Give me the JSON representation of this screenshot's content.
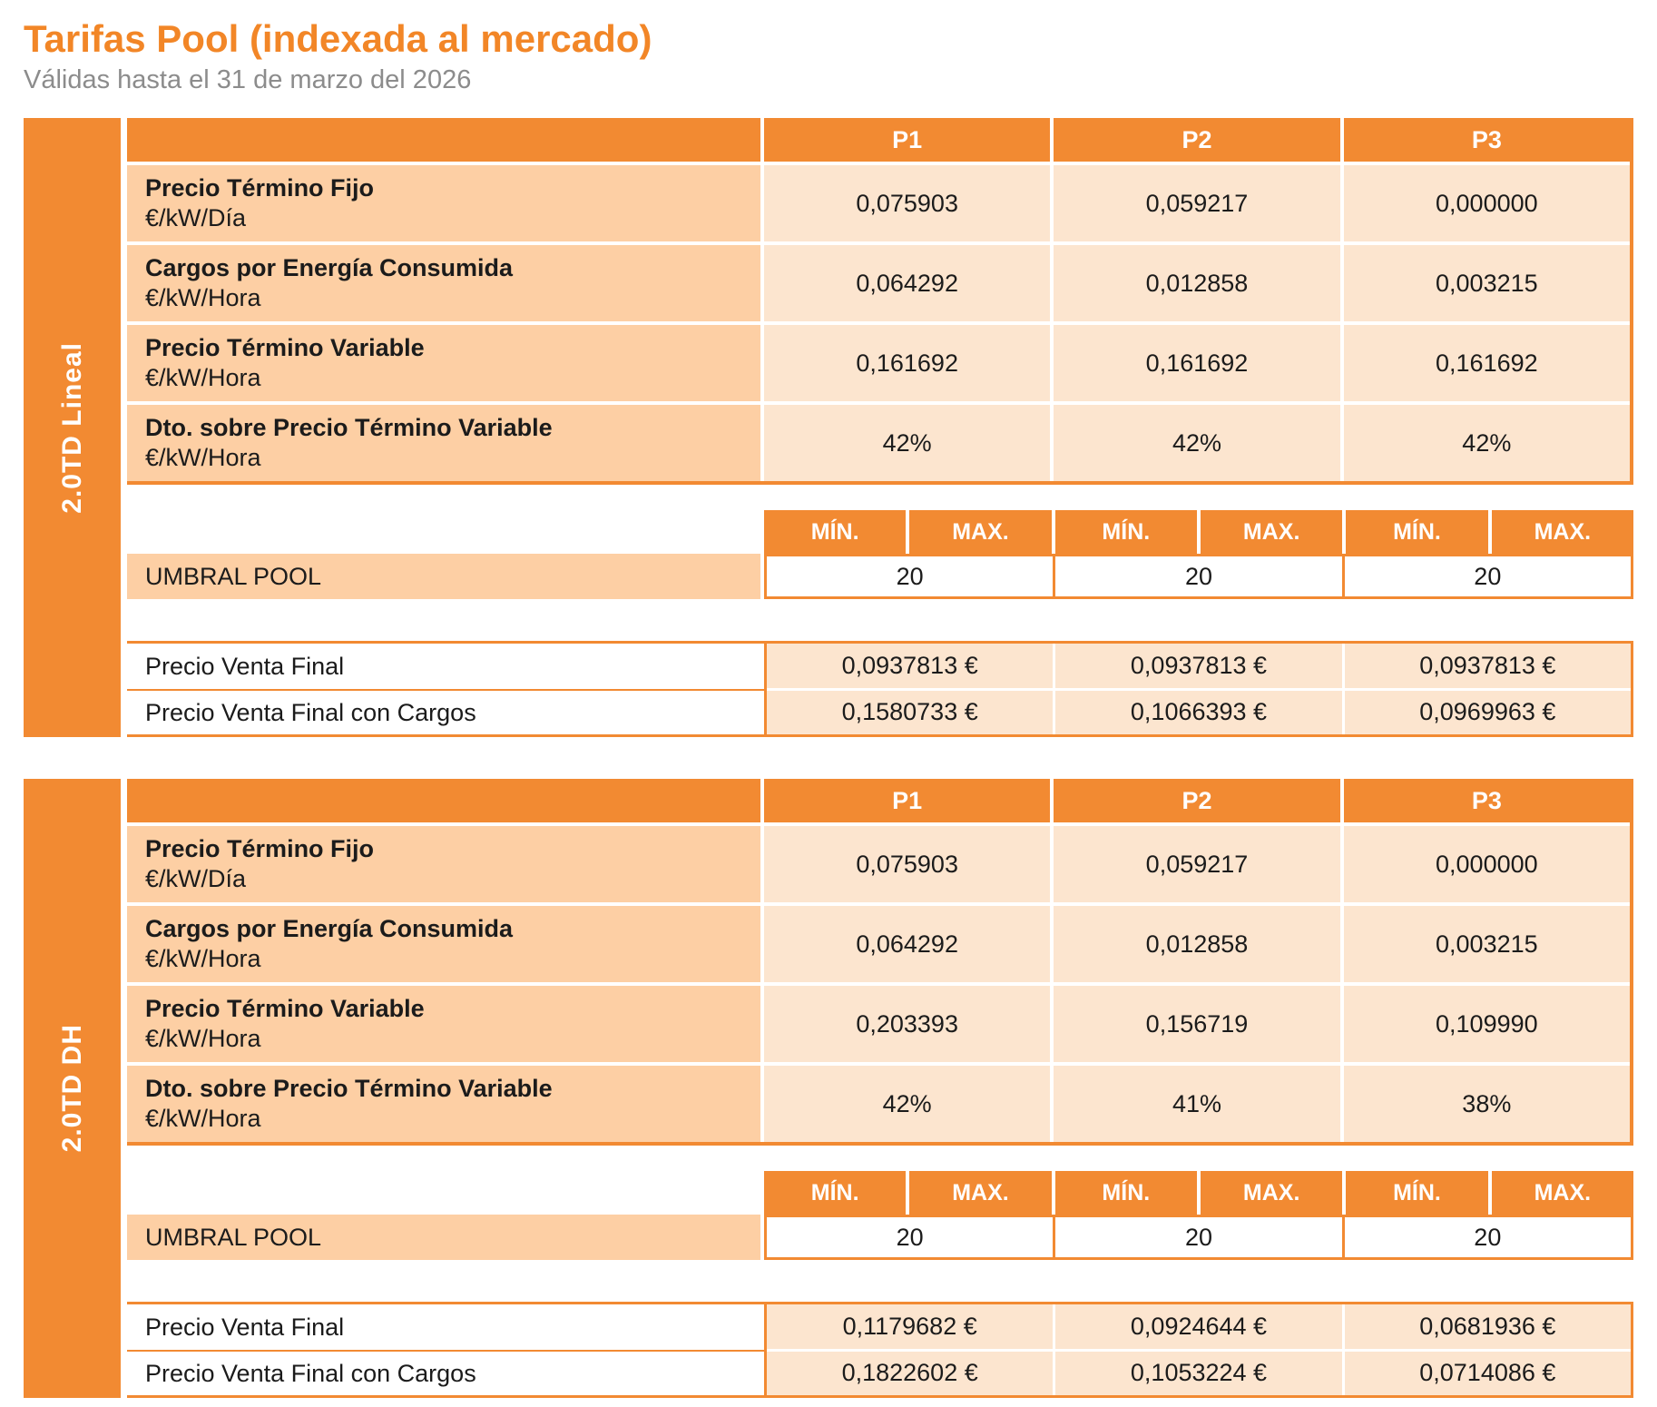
{
  "page": {
    "title": "Tarifas Pool (indexada al mercado)",
    "subtitle": "Válidas hasta el 31 de marzo del 2026"
  },
  "colors": {
    "accent_orange": "#f28a32",
    "title_orange": "#f28627",
    "label_cell_bg": "#fdcfa4",
    "value_cell_bg": "#fce5cf",
    "subtitle_gray": "#8c8c8c"
  },
  "columns": [
    "P1",
    "P2",
    "P3"
  ],
  "minmax": {
    "min": "MÍN.",
    "max": "MAX."
  },
  "tables": [
    {
      "name": "2.0TD Lineal",
      "rows": [
        {
          "label": "Precio Término Fijo",
          "unit": "€/kW/Día",
          "values": [
            "0,075903",
            "0,059217",
            "0,000000"
          ]
        },
        {
          "label": "Cargos por Energía Consumida",
          "unit": "€/kW/Hora",
          "values": [
            "0,064292",
            "0,012858",
            "0,003215"
          ]
        },
        {
          "label": "Precio Término Variable",
          "unit": "€/kW/Hora",
          "values": [
            "0,161692",
            "0,161692",
            "0,161692"
          ]
        },
        {
          "label": "Dto. sobre Precio Término Variable",
          "unit": "€/kW/Hora",
          "values": [
            "42%",
            "42%",
            "42%"
          ]
        }
      ],
      "umbral": {
        "label": "UMBRAL POOL",
        "values": [
          "20",
          "20",
          "20"
        ]
      },
      "final": [
        {
          "label": "Precio Venta Final",
          "values": [
            "0,0937813 €",
            "0,0937813 €",
            "0,0937813 €"
          ]
        },
        {
          "label": "Precio Venta Final con Cargos",
          "values": [
            "0,1580733 €",
            "0,1066393 €",
            "0,0969963 €"
          ]
        }
      ]
    },
    {
      "name": "2.0TD DH",
      "rows": [
        {
          "label": "Precio Término Fijo",
          "unit": "€/kW/Día",
          "values": [
            "0,075903",
            "0,059217",
            "0,000000"
          ]
        },
        {
          "label": "Cargos por Energía Consumida",
          "unit": "€/kW/Hora",
          "values": [
            "0,064292",
            "0,012858",
            "0,003215"
          ]
        },
        {
          "label": "Precio Término Variable",
          "unit": "€/kW/Hora",
          "values": [
            "0,203393",
            "0,156719",
            "0,109990"
          ]
        },
        {
          "label": "Dto. sobre Precio Término Variable",
          "unit": "€/kW/Hora",
          "values": [
            "42%",
            "41%",
            "38%"
          ]
        }
      ],
      "umbral": {
        "label": "UMBRAL POOL",
        "values": [
          "20",
          "20",
          "20"
        ]
      },
      "final": [
        {
          "label": "Precio Venta Final",
          "values": [
            "0,1179682 €",
            "0,0924644 €",
            "0,0681936 €"
          ]
        },
        {
          "label": "Precio Venta Final con Cargos",
          "values": [
            "0,1822602 €",
            "0,1053224 €",
            "0,0714086 €"
          ]
        }
      ]
    }
  ]
}
